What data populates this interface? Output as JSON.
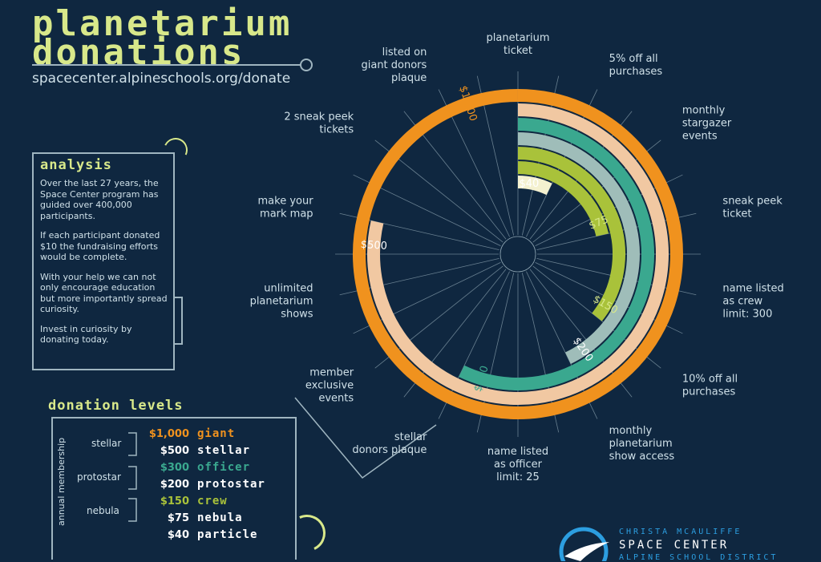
{
  "header": {
    "title_line1": "planetarium",
    "title_line2": "donations",
    "url": "spacecenter.alpineschools.org/donate"
  },
  "analysis": {
    "heading": "analysis",
    "paragraphs": [
      "Over the last 27 years, the Space Center program has guided over 400,000 participants.",
      "If each participant donated $10 the fundraising efforts would be complete.",
      "With your help we can not only encourage education but more importantly spread curiosity.",
      "Invest in curiosity by donating today."
    ]
  },
  "levels": {
    "heading": "donation levels",
    "axis_label": "annual membership",
    "groups": [
      "stellar",
      "protostar",
      "nebula"
    ],
    "rows": [
      {
        "price": "$1,000",
        "name": "giant",
        "color": "#f0921e"
      },
      {
        "price": "$500",
        "name": "stellar",
        "color": "#ffffff"
      },
      {
        "price": "$300",
        "name": "officer",
        "color": "#3aa88f"
      },
      {
        "price": "$200",
        "name": "protostar",
        "color": "#ffffff"
      },
      {
        "price": "$150",
        "name": "crew",
        "color": "#a9c23a"
      },
      {
        "price": "$75",
        "name": "nebula",
        "color": "#ffffff"
      },
      {
        "price": "$40",
        "name": "particle",
        "color": "#ffffff"
      }
    ]
  },
  "chart_data": {
    "type": "radial-bar",
    "benefit_labels": [
      "planetarium ticket",
      "5% off all purchases",
      "monthly stargazer events",
      "sneak peek ticket",
      "name listed as crew limit: 300",
      "10% off all purchases",
      "monthly planetarium show access",
      "name listed as officer limit: 25",
      "stellar donors plaque",
      "member exclusive events",
      "unlimited planetarium shows",
      "make your mark map",
      "2 sneak peek tickets",
      "listed on giant donors plaque"
    ],
    "series": [
      {
        "label": "$40",
        "value": 40,
        "color": "#f4f1d0",
        "benefits": 1
      },
      {
        "label": "$75",
        "value": 75,
        "color": "#a9c23a",
        "benefits": 3
      },
      {
        "label": "$150",
        "value": 150,
        "color": "#a9c23a",
        "benefits": 5
      },
      {
        "label": "$200",
        "value": 200,
        "color": "#9fbdb9",
        "benefits": 6
      },
      {
        "label": "$300",
        "value": 300,
        "color": "#3aa88f",
        "benefits": 8
      },
      {
        "label": "$500",
        "value": 500,
        "color": "#f1c8a2",
        "benefits": 11
      },
      {
        "label": "$1,000",
        "value": 1000,
        "color": "#f0921e",
        "benefits": 14
      }
    ]
  },
  "logo": {
    "line1": "CHRISTA MCAULIFFE",
    "line2": "SPACE CENTER",
    "line3": "ALPINE SCHOOL DISTRICT"
  }
}
